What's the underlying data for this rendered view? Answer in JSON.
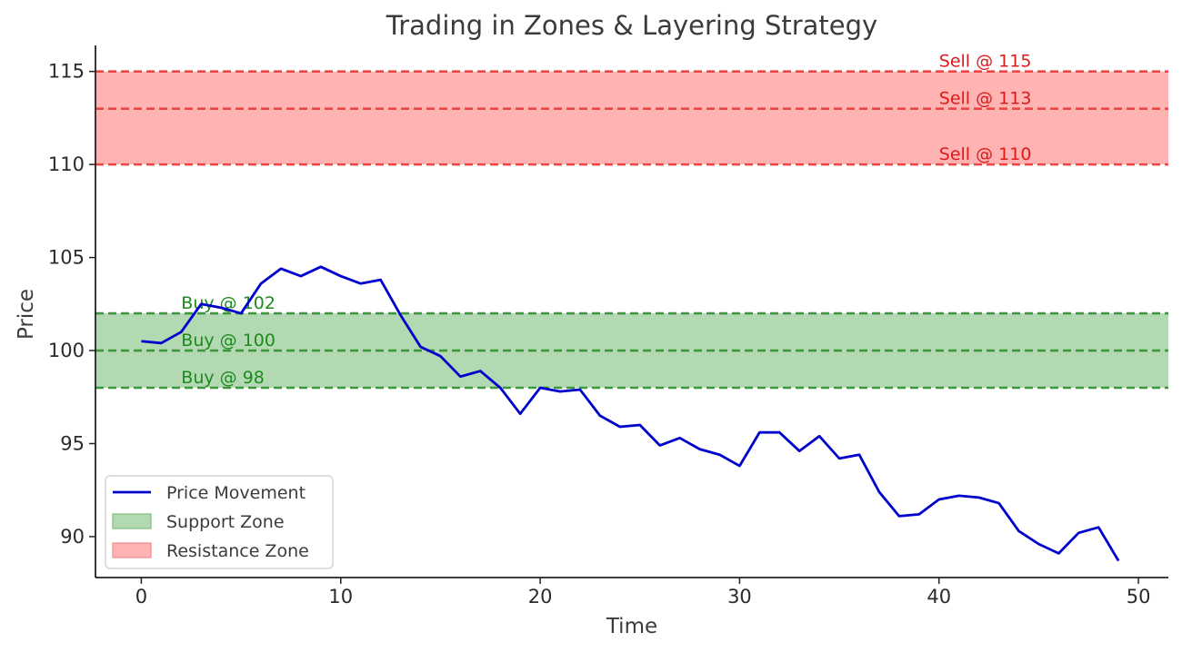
{
  "chart_data": {
    "type": "line",
    "title": "Trading in Zones & Layering Strategy",
    "xlabel": "Time",
    "ylabel": "Price",
    "xlim": [
      -2.3,
      51.5
    ],
    "ylim": [
      87.8,
      116.4
    ],
    "x_ticks": [
      0,
      10,
      20,
      30,
      40,
      50
    ],
    "y_ticks": [
      90,
      95,
      100,
      105,
      110,
      115
    ],
    "grid": false,
    "legend_position": "lower-left",
    "series": [
      {
        "name": "Price Movement",
        "color": "#0000cc",
        "x": [
          0,
          1,
          2,
          3,
          4,
          5,
          6,
          7,
          8,
          9,
          10,
          11,
          12,
          13,
          14,
          15,
          16,
          17,
          18,
          19,
          20,
          21,
          22,
          23,
          24,
          25,
          26,
          27,
          28,
          29,
          30,
          31,
          32,
          33,
          34,
          35,
          36,
          37,
          38,
          39,
          40,
          41,
          42,
          43,
          44,
          45,
          46,
          47,
          48,
          49
        ],
        "y": [
          100.5,
          100.4,
          101.0,
          102.5,
          102.3,
          102.0,
          103.6,
          104.4,
          104.0,
          104.5,
          104.0,
          103.6,
          103.8,
          101.9,
          100.2,
          99.7,
          98.6,
          98.9,
          98.0,
          96.6,
          98.0,
          97.8,
          97.9,
          96.5,
          95.9,
          96.0,
          94.9,
          95.3,
          94.7,
          94.4,
          93.8,
          95.6,
          95.6,
          94.6,
          95.4,
          94.2,
          94.4,
          92.4,
          91.1,
          91.2,
          92.0,
          92.2,
          92.1,
          91.8,
          90.3,
          89.6,
          89.1,
          90.2,
          90.5,
          88.7
        ]
      }
    ],
    "zones": [
      {
        "name": "Support Zone",
        "y_min": 98,
        "y_max": 102,
        "fill_color": "#b3d9b3",
        "line_color": "#3a9a3a",
        "levels": [
          {
            "price": 102,
            "label": "Buy @ 102"
          },
          {
            "price": 100,
            "label": "Buy @ 100"
          },
          {
            "price": 98,
            "label": "Buy @ 98"
          }
        ],
        "label_x": 2,
        "text_color": "#1e8a1e"
      },
      {
        "name": "Resistance Zone",
        "y_min": 110,
        "y_max": 115,
        "fill_color": "#ffb3b3",
        "line_color": "#ee4444",
        "levels": [
          {
            "price": 115,
            "label": "Sell @ 115"
          },
          {
            "price": 113,
            "label": "Sell @ 113"
          },
          {
            "price": 110,
            "label": "Sell @ 110"
          }
        ],
        "label_x": 40,
        "text_color": "#dd1a1a"
      }
    ],
    "legend": [
      {
        "label": "Price Movement",
        "kind": "line",
        "color": "#0000cc"
      },
      {
        "label": "Support Zone",
        "kind": "patch",
        "color": "#b3d9b3",
        "edge": "#7fbf7f"
      },
      {
        "label": "Resistance Zone",
        "kind": "patch",
        "color": "#ffb3b3",
        "edge": "#f08a8a"
      }
    ]
  }
}
